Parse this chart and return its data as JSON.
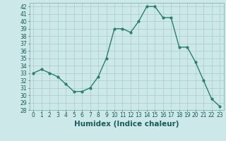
{
  "x": [
    0,
    1,
    2,
    3,
    4,
    5,
    6,
    7,
    8,
    9,
    10,
    11,
    12,
    13,
    14,
    15,
    16,
    17,
    18,
    19,
    20,
    21,
    22,
    23
  ],
  "y": [
    33,
    33.5,
    33,
    32.5,
    31.5,
    30.5,
    30.5,
    31,
    32.5,
    35,
    39,
    39,
    38.5,
    40,
    42,
    42,
    40.5,
    40.5,
    36.5,
    36.5,
    34.5,
    32,
    29.5,
    28.5
  ],
  "line_color": "#2e7d6e",
  "marker": "o",
  "marker_size": 2.0,
  "bg_color": "#cce8e8",
  "grid_color": "#aacccc",
  "xlabel": "Humidex (Indice chaleur)",
  "ylim": [
    28,
    42.5
  ],
  "xlim": [
    -0.5,
    23.5
  ],
  "yticks": [
    28,
    29,
    30,
    31,
    32,
    33,
    34,
    35,
    36,
    37,
    38,
    39,
    40,
    41,
    42
  ],
  "xticks": [
    0,
    1,
    2,
    3,
    4,
    5,
    6,
    7,
    8,
    9,
    10,
    11,
    12,
    13,
    14,
    15,
    16,
    17,
    18,
    19,
    20,
    21,
    22,
    23
  ],
  "tick_fontsize": 5.5,
  "xlabel_fontsize": 7.5,
  "line_width": 1.0
}
